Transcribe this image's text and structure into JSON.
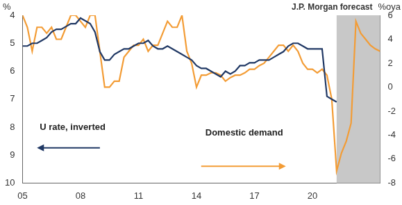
{
  "chart_data": {
    "type": "line",
    "ylabel": "%",
    "y2label": "%oya",
    "x": [
      2005,
      2005.25,
      2005.5,
      2005.75,
      2006,
      2006.25,
      2006.5,
      2006.75,
      2007,
      2007.25,
      2007.5,
      2007.75,
      2008,
      2008.25,
      2008.5,
      2008.75,
      2009,
      2009.25,
      2009.5,
      2009.75,
      2010,
      2010.25,
      2010.5,
      2010.75,
      2011,
      2011.25,
      2011.5,
      2011.75,
      2012,
      2012.25,
      2012.5,
      2012.75,
      2013,
      2013.25,
      2013.5,
      2013.75,
      2014,
      2014.25,
      2014.5,
      2014.75,
      2015,
      2015.25,
      2015.5,
      2015.75,
      2016,
      2016.25,
      2016.5,
      2016.75,
      2017,
      2017.25,
      2017.5,
      2017.75,
      2018,
      2018.25,
      2018.5,
      2018.75,
      2019,
      2019.25,
      2019.5,
      2019.75,
      2020,
      2020.25,
      2020.5,
      2020.75,
      2021,
      2021.25,
      2021.5,
      2021.75,
      2022,
      2022.25,
      2022.5,
      2022.75,
      2023,
      2023.25,
      2023.5
    ],
    "series": [
      {
        "name": "U rate, inverted",
        "color": "#203864",
        "axis": "y",
        "values": [
          5.1,
          5.1,
          5.0,
          5.0,
          4.9,
          4.8,
          4.6,
          4.5,
          4.5,
          4.4,
          4.3,
          4.3,
          4.1,
          4.2,
          4.3,
          4.6,
          5.3,
          5.6,
          5.6,
          5.4,
          5.3,
          5.2,
          5.2,
          5.1,
          5.0,
          5.0,
          4.9,
          5.1,
          5.2,
          5.2,
          5.1,
          5.2,
          5.3,
          5.4,
          5.5,
          5.6,
          5.8,
          5.9,
          5.9,
          6.0,
          6.1,
          6.2,
          6.0,
          6.1,
          6.0,
          5.8,
          5.8,
          5.7,
          5.7,
          5.6,
          5.6,
          5.6,
          5.5,
          5.4,
          5.3,
          5.1,
          5.0,
          5.0,
          5.1,
          5.2,
          5.2,
          5.2,
          5.2,
          6.9,
          7.0,
          7.1,
          null,
          null,
          null,
          null,
          null,
          null,
          null,
          null,
          null
        ]
      },
      {
        "name": "Domestic demand",
        "color": "#f39c35",
        "axis": "y2",
        "values": [
          6,
          5,
          3,
          5,
          5,
          4.5,
          5,
          4,
          4,
          5,
          6,
          6,
          5.5,
          5,
          6,
          6,
          3,
          0,
          0,
          0.5,
          0.5,
          2.5,
          3,
          3.5,
          3.5,
          4,
          3,
          3.5,
          3.5,
          4.5,
          5.5,
          5,
          5,
          6,
          3,
          2,
          0,
          1,
          1,
          1.2,
          1.2,
          1,
          0.5,
          0.8,
          1,
          1,
          1.2,
          1.5,
          1.5,
          1.8,
          2,
          2.5,
          3,
          3.5,
          3.5,
          3,
          3.5,
          3,
          2,
          1.5,
          1.5,
          1.2,
          1.5,
          1,
          -1,
          -7,
          -5.5,
          -4.5,
          -3,
          5.5,
          4.5,
          4,
          3.5,
          3.2,
          3
        ]
      }
    ],
    "xlim": [
      2005,
      2023.5
    ],
    "xticks": [
      {
        "value": 2005,
        "label": "05"
      },
      {
        "value": 2008,
        "label": "08"
      },
      {
        "value": 2011,
        "label": "11"
      },
      {
        "value": 2014,
        "label": "14"
      },
      {
        "value": 2017,
        "label": "17"
      },
      {
        "value": 2020,
        "label": "20"
      }
    ],
    "ylim": [
      4,
      10
    ],
    "yticks": [
      4,
      5,
      6,
      7,
      8,
      9,
      10
    ],
    "y2lim": [
      -8,
      6
    ],
    "y2ticks": [
      -8,
      -6,
      -4,
      -2,
      0,
      2,
      4,
      6
    ],
    "forecast_region": {
      "label": "J.P. Morgan forecast",
      "range": [
        2021.25,
        2023.5
      ]
    },
    "grid": false
  }
}
